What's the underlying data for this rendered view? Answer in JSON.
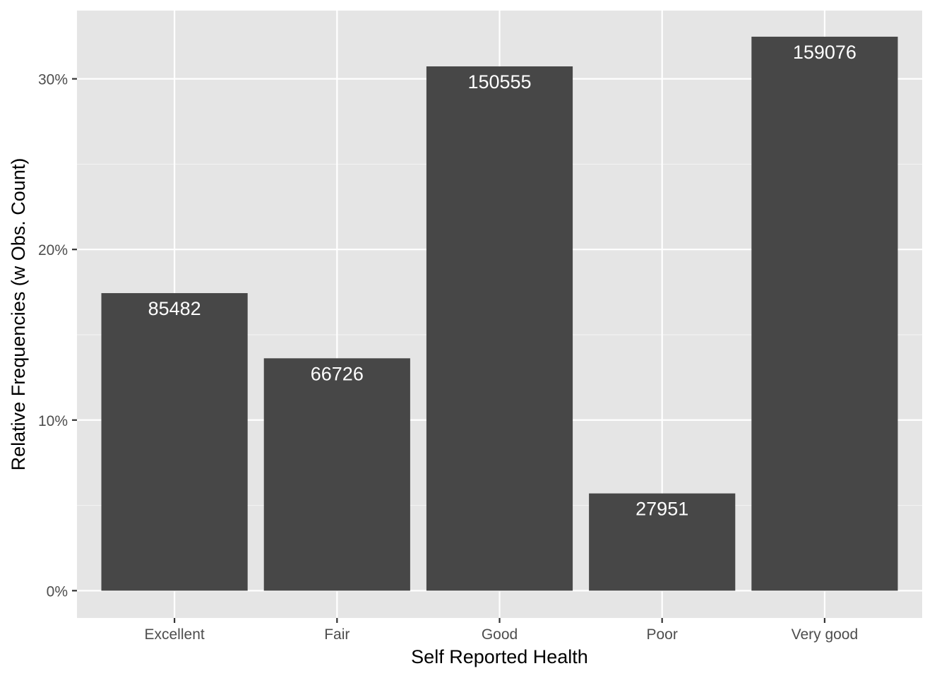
{
  "chart_data": {
    "type": "bar",
    "categories": [
      "Excellent",
      "Fair",
      "Good",
      "Poor",
      "Very good"
    ],
    "counts": [
      85482,
      66726,
      150555,
      27951,
      159076
    ],
    "values": [
      0.1744,
      0.1362,
      0.3073,
      0.057,
      0.3247
    ],
    "data_labels": [
      "85482",
      "66726",
      "150555",
      "27951",
      "159076"
    ],
    "title": "",
    "xlabel": "Self Reported Health",
    "ylabel": "Relative Frequencies (w Obs. Count)",
    "ylim": [
      -0.016,
      0.34
    ],
    "y_ticks": [
      0,
      0.1,
      0.2,
      0.3
    ],
    "y_tick_labels": [
      "0%",
      "10%",
      "20%",
      "30%"
    ],
    "grid": true,
    "legend": "none",
    "colors": {
      "panel_background": "#e5e5e5",
      "grid_major": "#ffffff",
      "grid_minor": "#f2f2f2",
      "bar_fill": "#474747",
      "data_label": "#ffffff",
      "tick": "#333333",
      "tick_label": "#4d4d4d",
      "axis_title": "#000000"
    }
  }
}
